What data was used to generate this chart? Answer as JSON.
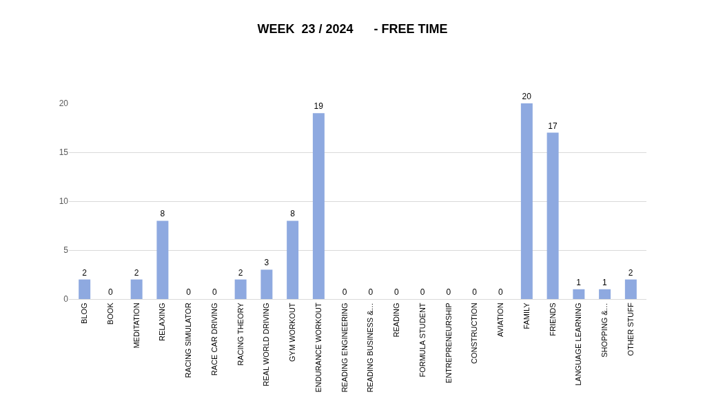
{
  "chart_data": {
    "type": "bar",
    "title": "WEEK  23 / 2024      - FREE TIME",
    "categories": [
      "BLOG",
      "BOOK",
      "MEDITATION",
      "RELAXING",
      "RACING SIMULATOR",
      "RACE CAR DRIVING",
      "RACING THEORY",
      "REAL WORLD DRIVING",
      "GYM WORKOUT",
      "ENDURANCE WORKOUT",
      "READING ENGINEERING",
      "READING BUSINESS &…",
      "READING",
      "FORMULA STUDENT",
      "ENTREPRENEURSHIP",
      "CONSTRUCTION",
      "AVIATION",
      "FAMILY",
      "FRIENDS",
      "LANGUAGE LEARNING",
      "SHOPPING &…",
      "OTHER STUFF"
    ],
    "values": [
      2,
      0,
      2,
      8,
      0,
      0,
      2,
      3,
      8,
      19,
      0,
      0,
      0,
      0,
      0,
      0,
      0,
      20,
      17,
      1,
      1,
      2
    ],
    "color": "#8ea9e0",
    "ylim": [
      0,
      20
    ],
    "yticks": [
      0,
      5,
      10,
      15,
      20
    ],
    "grid": "y",
    "data_labels": true
  }
}
